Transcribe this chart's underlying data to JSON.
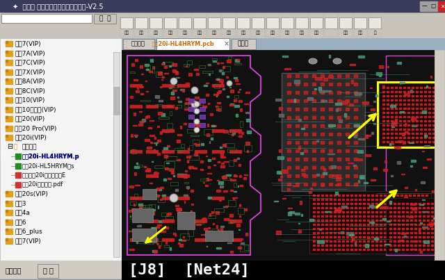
{
  "title": "鑫智造 智能终端设备维修查询系统-V2.5",
  "tab_active": "荣耀20i-HL4HRYM.pcb",
  "tab_left": "会员中心",
  "tab_right": "电路图",
  "status_bar": "[J8]  [Net24]",
  "sidebar_items": [
    "畅玩7(VIP)",
    "畅玩7A(VIP)",
    "畅玩7C(VIP)",
    "畅玩7X(VIP)",
    "畅玩8A(VIP)",
    "畅玩8C(VIP)",
    "荣耀10(VIP)",
    "荣耀10青春版(VIP)",
    "荣耀20(VIP)",
    "荣耀20 Pro(VIP)",
    "荣耀20i(VIP)",
    "图纸点位",
    "荣耀20i-HL4HRYM.p",
    "荣耀20i-HL5HRYM一s",
    "华为荣耀20i实物扫描图E",
    "荣耀20i元件标注.pdf",
    "荣耀20s(VIP)",
    "荣耀3",
    "荣耀4a",
    "荣耀6",
    "荣耀6_plus",
    "荣耀7(VIP)"
  ],
  "titlebar_color": "#4a4a6a",
  "toolbar_color": "#c8c8c8",
  "sidebar_color": "#f0f0f0",
  "pcb_bg": "#111111",
  "status_bg": "#000000",
  "tab_bg": "#b0b8c0",
  "purple": "#dd44dd",
  "yellow": "#ffff00",
  "red_pad": "#cc2222",
  "teal_pad": "#4a9a7a",
  "gray_comp": "#707070",
  "green_trace": "#3a8a3a"
}
